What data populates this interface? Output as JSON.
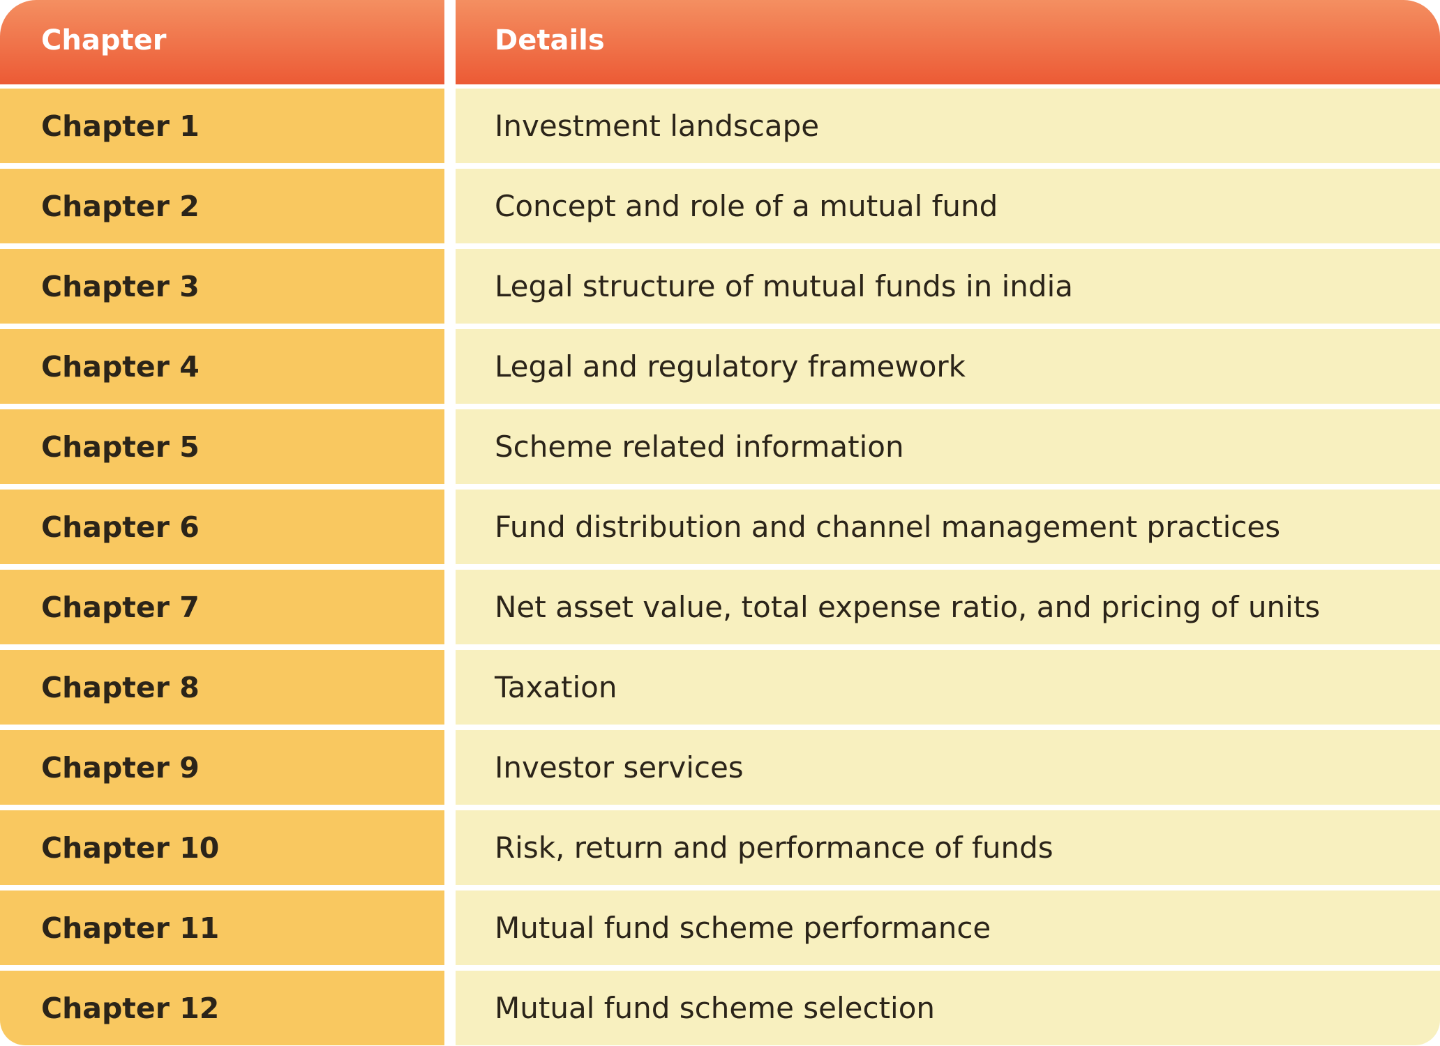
{
  "header": {
    "chapter_label": "Chapter",
    "details_label": "Details"
  },
  "rows": [
    {
      "chapter": "Chapter 1",
      "details": "Investment landscape"
    },
    {
      "chapter": "Chapter 2",
      "details": "Concept and role of a mutual fund"
    },
    {
      "chapter": "Chapter 3",
      "details": "Legal structure of mutual funds in india"
    },
    {
      "chapter": "Chapter 4",
      "details": "Legal and regulatory framework"
    },
    {
      "chapter": "Chapter 5",
      "details": "Scheme related information"
    },
    {
      "chapter": "Chapter 6",
      "details": "Fund distribution and channel management practices"
    },
    {
      "chapter": "Chapter 7",
      "details": "Net asset value, total expense ratio, and pricing of units"
    },
    {
      "chapter": "Chapter 8",
      "details": "Taxation"
    },
    {
      "chapter": "Chapter 9",
      "details": "Investor services"
    },
    {
      "chapter": "Chapter 10",
      "details": "Risk, return and performance of funds"
    },
    {
      "chapter": "Chapter 11",
      "details": "Mutual fund scheme performance"
    },
    {
      "chapter": "Chapter 12",
      "details": "Mutual fund scheme selection"
    }
  ],
  "colors": {
    "header_top": "#f48f61",
    "header_bottom": "#ec5a35",
    "chapter_cell": "#f9c860",
    "details_cell": "#f8f0bf",
    "text": "#2b2419"
  }
}
